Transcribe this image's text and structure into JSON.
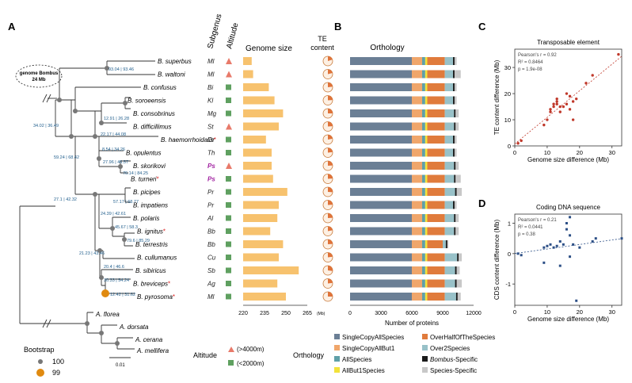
{
  "panel_labels": {
    "a": "A",
    "b": "B",
    "c": "C",
    "d": "D"
  },
  "col_headers": {
    "subgenus": "Subgenus",
    "altitude": "Altitude",
    "genome_size": "Genome size",
    "te_content_1": "TE",
    "te_content_2": "content",
    "orthology": "Orthology"
  },
  "genome_callout_1": "genome Bombus",
  "genome_callout_2": "24 Mb",
  "species": [
    {
      "name": "B. superbus",
      "subgenus": "Ml",
      "alt": "high",
      "gs": 226,
      "te": 0.2,
      "subgenus_color": "#222222"
    },
    {
      "name": "B. waltoni",
      "subgenus": "Ml",
      "alt": "high",
      "gs": 227,
      "te": 0.21,
      "subgenus_color": "#222222"
    },
    {
      "name": "B. confusus",
      "subgenus": "Bi",
      "alt": "low",
      "gs": 238,
      "te": 0.23,
      "subgenus_color": "#222222"
    },
    {
      "name": "B. soroeensis",
      "subgenus": "Kl",
      "alt": "low",
      "gs": 242,
      "te": 0.24,
      "subgenus_color": "#222222"
    },
    {
      "name": "B. consobrinus",
      "subgenus": "Mg",
      "alt": "low",
      "gs": 248,
      "te": 0.25,
      "subgenus_color": "#222222"
    },
    {
      "name": "B. difficillimus",
      "subgenus": "St",
      "alt": "high",
      "gs": 245,
      "te": 0.24,
      "subgenus_color": "#222222"
    },
    {
      "name": "B. haemorrhoidalis",
      "subgenus": "Or",
      "alt": "low",
      "gs": 236,
      "te": 0.22,
      "subgenus_color": "#222222",
      "star": true
    },
    {
      "name": "B. opulentus",
      "subgenus": "Th",
      "alt": "low",
      "gs": 240,
      "te": 0.23,
      "subgenus_color": "#222222"
    },
    {
      "name": "B. skorikovi",
      "subgenus": "Ps",
      "alt": "high",
      "gs": 240,
      "te": 0.24,
      "subgenus_color": "#a020a0"
    },
    {
      "name": "B. turneri",
      "subgenus": "Ps",
      "alt": "low",
      "gs": 241,
      "te": 0.24,
      "subgenus_color": "#a020a0",
      "star": true
    },
    {
      "name": "B. picipes",
      "subgenus": "Pr",
      "alt": "low",
      "gs": 251,
      "te": 0.26,
      "subgenus_color": "#222222"
    },
    {
      "name": "B. impatiens",
      "subgenus": "Pr",
      "alt": "low",
      "gs": 245,
      "te": 0.24,
      "subgenus_color": "#222222"
    },
    {
      "name": "B. polaris",
      "subgenus": "Al",
      "alt": "low",
      "gs": 244,
      "te": 0.24,
      "subgenus_color": "#222222"
    },
    {
      "name": "B. ignitus",
      "subgenus": "Bb",
      "alt": "low",
      "gs": 239,
      "te": 0.22,
      "subgenus_color": "#222222",
      "star": true
    },
    {
      "name": "B. terrestris",
      "subgenus": "Bb",
      "alt": "low",
      "gs": 248,
      "te": 0.24,
      "subgenus_color": "#222222"
    },
    {
      "name": "B. cullumanus",
      "subgenus": "Cu",
      "alt": "low",
      "gs": 245,
      "te": 0.23,
      "subgenus_color": "#222222"
    },
    {
      "name": "B. sibiricus",
      "subgenus": "Sb",
      "alt": "low",
      "gs": 259,
      "te": 0.27,
      "subgenus_color": "#222222"
    },
    {
      "name": "B. breviceps",
      "subgenus": "Ag",
      "alt": "low",
      "gs": 244,
      "te": 0.23,
      "subgenus_color": "#222222",
      "star": true
    },
    {
      "name": "B. pyrosoma",
      "subgenus": "Ml",
      "alt": "low",
      "gs": 250,
      "te": 0.25,
      "subgenus_color": "#222222",
      "star": true
    }
  ],
  "outgroups": [
    "A. florea",
    "A. dorsata",
    "A. cerana",
    "A. mellifera"
  ],
  "node_labels": [
    "93.04 | 93.46",
    "12.91 | 26.28",
    "34.02 | 36.49",
    "22.17 | 44.08",
    "8.54 | 34.26",
    "59.24 | 68.42",
    "27.96 | 46.57",
    "76.14 | 84.25",
    "27.1 | 42.32",
    "57.17 | 68.77",
    "24.39 | 42.61",
    "45.67 | 58.3",
    "79.6 | 85.29",
    "21.23 | 43.46",
    "20.4 | 46.6",
    "30.33 | 54.24",
    "12.42 | 31.62"
  ],
  "genome_axis": {
    "ticks": [
      "220",
      "235",
      "250",
      "265"
    ],
    "unit": "(Mb)",
    "min": 220,
    "max": 265
  },
  "orthology_axis": {
    "ticks": [
      "0",
      "3000",
      "6000",
      "9000",
      "12000"
    ],
    "label": "Number of proteins",
    "max": 12000
  },
  "orthology_categories": [
    {
      "name": "SingleCopyAllSpecies",
      "color": "#6b7f95"
    },
    {
      "name": "SingleCopyAllBut1",
      "color": "#f0a66b"
    },
    {
      "name": "AllSpecies",
      "color": "#5fa0a8"
    },
    {
      "name": "AllBut1Species",
      "color": "#f2e23a"
    },
    {
      "name": "OverHalfOfTheSpecies",
      "color": "#e07b3c"
    },
    {
      "name": "Over2Species",
      "color": "#98c1c8"
    },
    {
      "name": "Bombus-Specific",
      "color": "#1b1b1b"
    },
    {
      "name": "Species-Specific",
      "color": "#c8c8c8"
    }
  ],
  "orthology_values": [
    [
      6000,
      1000,
      300,
      200,
      1700,
      800,
      150,
      200
    ],
    [
      6000,
      1000,
      300,
      200,
      1700,
      800,
      150,
      600
    ],
    [
      6000,
      1000,
      300,
      200,
      1700,
      800,
      150,
      200
    ],
    [
      6000,
      1000,
      300,
      200,
      1700,
      800,
      150,
      200
    ],
    [
      6000,
      1000,
      300,
      200,
      1700,
      900,
      150,
      300
    ],
    [
      6000,
      1000,
      300,
      200,
      1700,
      900,
      150,
      300
    ],
    [
      6000,
      1000,
      300,
      200,
      1700,
      800,
      150,
      200
    ],
    [
      6000,
      1000,
      300,
      200,
      1700,
      800,
      150,
      200
    ],
    [
      6000,
      1000,
      300,
      200,
      1700,
      900,
      150,
      300
    ],
    [
      6000,
      1000,
      300,
      200,
      1700,
      900,
      150,
      500
    ],
    [
      6000,
      1000,
      300,
      200,
      1700,
      1000,
      150,
      500
    ],
    [
      6000,
      1000,
      300,
      200,
      1700,
      800,
      150,
      200
    ],
    [
      6000,
      1000,
      300,
      200,
      1700,
      900,
      150,
      300
    ],
    [
      6000,
      1000,
      300,
      200,
      1700,
      900,
      150,
      300
    ],
    [
      6000,
      1000,
      300,
      200,
      1500,
      300,
      150,
      100
    ],
    [
      6000,
      1000,
      300,
      200,
      1700,
      1200,
      150,
      300
    ],
    [
      6000,
      1000,
      300,
      200,
      1700,
      1000,
      150,
      300
    ],
    [
      6000,
      1000,
      300,
      200,
      1700,
      1000,
      150,
      500
    ],
    [
      6000,
      1000,
      300,
      200,
      1700,
      1100,
      150,
      300
    ]
  ],
  "legend": {
    "bootstrap_title": "Bootstrap",
    "bootstrap_items": [
      {
        "label": "100",
        "color": "#777777"
      },
      {
        "label": "99",
        "color": "#e08a10"
      }
    ],
    "scale_label": "0.01",
    "altitude_title": "Altitude",
    "altitude_items": [
      "(>4000m)",
      "(<2000m)"
    ],
    "orthology_title": "Orthology"
  },
  "chart_data": [
    {
      "type": "scatter",
      "title": "Transposable element",
      "xlabel": "Genome size difference (Mb)",
      "ylabel": "TE content difference (Mb)",
      "xlim": [
        0,
        33
      ],
      "ylim": [
        0,
        37
      ],
      "xticks": [
        "0",
        "10",
        "20",
        "30"
      ],
      "yticks": [
        "0",
        "10",
        "20",
        "30"
      ],
      "stats": [
        "Pearson's r = 0.92",
        "R² = 0.8464",
        "p = 1.9e-08"
      ],
      "color": "#c0392b",
      "points": [
        [
          1,
          1
        ],
        [
          2,
          2
        ],
        [
          9,
          8
        ],
        [
          10,
          10
        ],
        [
          11,
          13
        ],
        [
          11,
          14
        ],
        [
          12,
          15
        ],
        [
          12,
          16
        ],
        [
          13,
          17
        ],
        [
          13,
          18
        ],
        [
          13,
          16
        ],
        [
          14,
          15
        ],
        [
          14,
          13
        ],
        [
          15,
          15
        ],
        [
          16,
          16
        ],
        [
          16,
          20
        ],
        [
          17,
          19
        ],
        [
          17,
          14
        ],
        [
          18,
          10
        ],
        [
          18,
          17
        ],
        [
          19,
          18
        ],
        [
          22,
          24
        ],
        [
          24,
          27
        ],
        [
          32,
          35
        ]
      ]
    },
    {
      "type": "scatter",
      "title": "Coding DNA sequence",
      "xlabel": "Genome size difference (Mb)",
      "ylabel": "CDS content difference (Mb)",
      "xlim": [
        0,
        33
      ],
      "ylim": [
        -1.7,
        1.3
      ],
      "xticks": [
        "0",
        "10",
        "20",
        "30"
      ],
      "yticks": [
        "-1",
        "0",
        "1"
      ],
      "stats": [
        "Pearson's r = 0.21",
        "R² = 0.0441",
        "p = 0.38"
      ],
      "color": "#2c4f86",
      "points": [
        [
          1,
          0
        ],
        [
          2,
          -0.05
        ],
        [
          9,
          0.2
        ],
        [
          9,
          -0.3
        ],
        [
          10,
          0.25
        ],
        [
          11,
          0.3
        ],
        [
          12,
          0.2
        ],
        [
          13,
          0.25
        ],
        [
          14,
          0.4
        ],
        [
          14,
          -0.4
        ],
        [
          15,
          0.3
        ],
        [
          16,
          1.0
        ],
        [
          16,
          0.8
        ],
        [
          17,
          1.2
        ],
        [
          17,
          0.6
        ],
        [
          17,
          -0.1
        ],
        [
          18,
          0.3
        ],
        [
          19,
          -1.55
        ],
        [
          20,
          0.2
        ],
        [
          24,
          0.4
        ],
        [
          25,
          0.5
        ],
        [
          33,
          0.5
        ]
      ]
    }
  ]
}
